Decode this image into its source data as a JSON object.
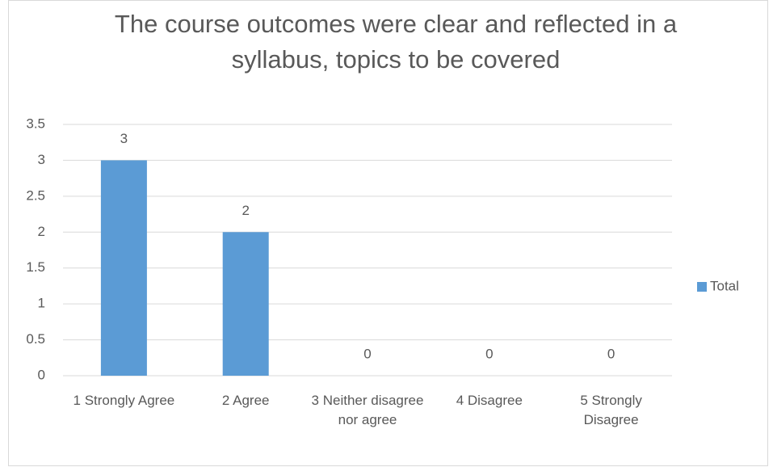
{
  "chart_data": {
    "type": "bar",
    "title": "The course outcomes were clear and reflected in a syllabus, topics to be covered",
    "categories": [
      "1 Strongly Agree",
      "2 Agree",
      "3 Neither disagree nor agree",
      "4 Disagree",
      "5 Strongly Disagree"
    ],
    "series": [
      {
        "name": "Total",
        "color": "#5b9bd5",
        "values": [
          3,
          2,
          0,
          0,
          0
        ]
      }
    ],
    "ylim": [
      0,
      3.5
    ],
    "yticks": [
      0,
      0.5,
      1,
      1.5,
      2,
      2.5,
      3,
      3.5
    ],
    "grid": true,
    "legend": "right"
  }
}
